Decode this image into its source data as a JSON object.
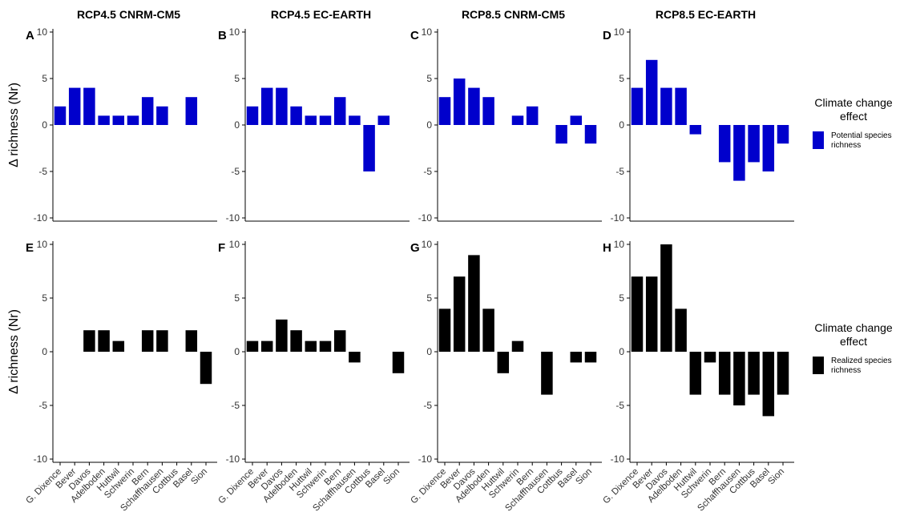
{
  "chart_data": {
    "type": "bar",
    "categories": [
      "G. Dixence",
      "Bever",
      "Davos",
      "Adelboden",
      "Huttwil",
      "Schwerin",
      "Bern",
      "Schaffhausen",
      "Cottbus",
      "Basel",
      "Sion"
    ],
    "y_axis_title": "Δ richness (Nr)",
    "ylim": [
      -10,
      10
    ],
    "yticks": [
      10,
      5,
      0,
      -5,
      -10
    ],
    "ytick_labels": [
      "10",
      "5",
      "0",
      "-5",
      "-10"
    ],
    "grid": false,
    "column_titles": [
      "RCP4.5 CNRM-CM5",
      "RCP4.5 EC-EARTH",
      "RCP8.5 CNRM-CM5",
      "RCP8.5 EC-EARTH"
    ],
    "rows": [
      {
        "series_name": "Potential species richness",
        "color": "#0000cc",
        "legend": {
          "title": [
            "Climate change",
            "effect"
          ],
          "label": [
            "Potential species",
            "richness"
          ],
          "placement": "right"
        },
        "panels": [
          {
            "letter": "A",
            "values": [
              2,
              4,
              4,
              1,
              1,
              1,
              3,
              2,
              0,
              3,
              0
            ]
          },
          {
            "letter": "B",
            "values": [
              2,
              4,
              4,
              2,
              1,
              1,
              3,
              1,
              -5,
              1,
              0
            ]
          },
          {
            "letter": "C",
            "values": [
              3,
              5,
              4,
              3,
              0,
              1,
              2,
              0,
              -2,
              1,
              -2
            ]
          },
          {
            "letter": "D",
            "values": [
              4,
              7,
              4,
              4,
              -1,
              0,
              -4,
              -6,
              -4,
              -5,
              -2
            ]
          }
        ]
      },
      {
        "series_name": "Realized species richness",
        "color": "#000000",
        "legend": {
          "title": [
            "Climate change",
            "effect"
          ],
          "label": [
            "Realized species",
            "richness"
          ],
          "placement": "right"
        },
        "panels": [
          {
            "letter": "E",
            "values": [
              0,
              0,
              2,
              2,
              1,
              0,
              2,
              2,
              0,
              2,
              -3
            ]
          },
          {
            "letter": "F",
            "values": [
              1,
              1,
              3,
              2,
              1,
              1,
              2,
              -1,
              0,
              0,
              -2
            ]
          },
          {
            "letter": "G",
            "values": [
              4,
              7,
              9,
              4,
              -2,
              1,
              0,
              -4,
              0,
              -1,
              -1
            ]
          },
          {
            "letter": "H",
            "values": [
              7,
              7,
              10,
              4,
              -4,
              -1,
              -4,
              -5,
              -4,
              -6,
              -4
            ]
          }
        ]
      }
    ]
  }
}
